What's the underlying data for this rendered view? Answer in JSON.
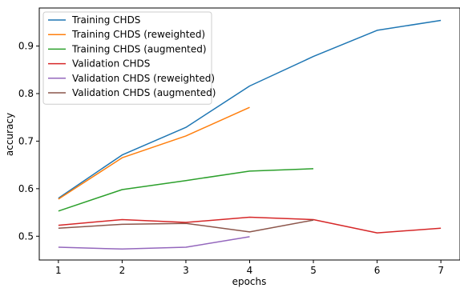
{
  "chart_data": {
    "type": "line",
    "title": "",
    "xlabel": "epochs",
    "ylabel": "accuracy",
    "xlim": [
      0.7,
      7.3
    ],
    "ylim": [
      0.45,
      0.98
    ],
    "xticks": [
      1,
      2,
      3,
      4,
      5,
      6,
      7
    ],
    "yticks": [
      0.5,
      0.6,
      0.7,
      0.8,
      0.9
    ],
    "ytick_labels": [
      "0.5",
      "0.6",
      "0.7",
      "0.8",
      "0.9"
    ],
    "grid": false,
    "legend_position": "top-left",
    "series": [
      {
        "name": "Training CHDS",
        "color": "#1f77b4",
        "x": [
          1,
          2,
          3,
          4,
          5,
          6,
          7
        ],
        "y": [
          0.58,
          0.671,
          0.729,
          0.816,
          0.878,
          0.933,
          0.954
        ]
      },
      {
        "name": "Training CHDS (reweighted)",
        "color": "#ff7f0e",
        "x": [
          1,
          2,
          3,
          4
        ],
        "y": [
          0.578,
          0.665,
          0.711,
          0.771
        ]
      },
      {
        "name": "Training CHDS (augmented)",
        "color": "#2ca02c",
        "x": [
          1,
          2,
          3,
          4,
          5
        ],
        "y": [
          0.553,
          0.598,
          0.617,
          0.637,
          0.642
        ]
      },
      {
        "name": "Validation CHDS",
        "color": "#d62728",
        "x": [
          1,
          2,
          3,
          4,
          5,
          6,
          7
        ],
        "y": [
          0.523,
          0.535,
          0.529,
          0.54,
          0.535,
          0.507,
          0.517
        ]
      },
      {
        "name": "Validation CHDS (reweighted)",
        "color": "#9467bd",
        "x": [
          1,
          2,
          3,
          4
        ],
        "y": [
          0.477,
          0.473,
          0.477,
          0.499
        ]
      },
      {
        "name": "Validation CHDS (augmented)",
        "color": "#8c564b",
        "x": [
          1,
          2,
          3,
          4,
          5
        ],
        "y": [
          0.517,
          0.525,
          0.527,
          0.509,
          0.534
        ]
      }
    ]
  }
}
